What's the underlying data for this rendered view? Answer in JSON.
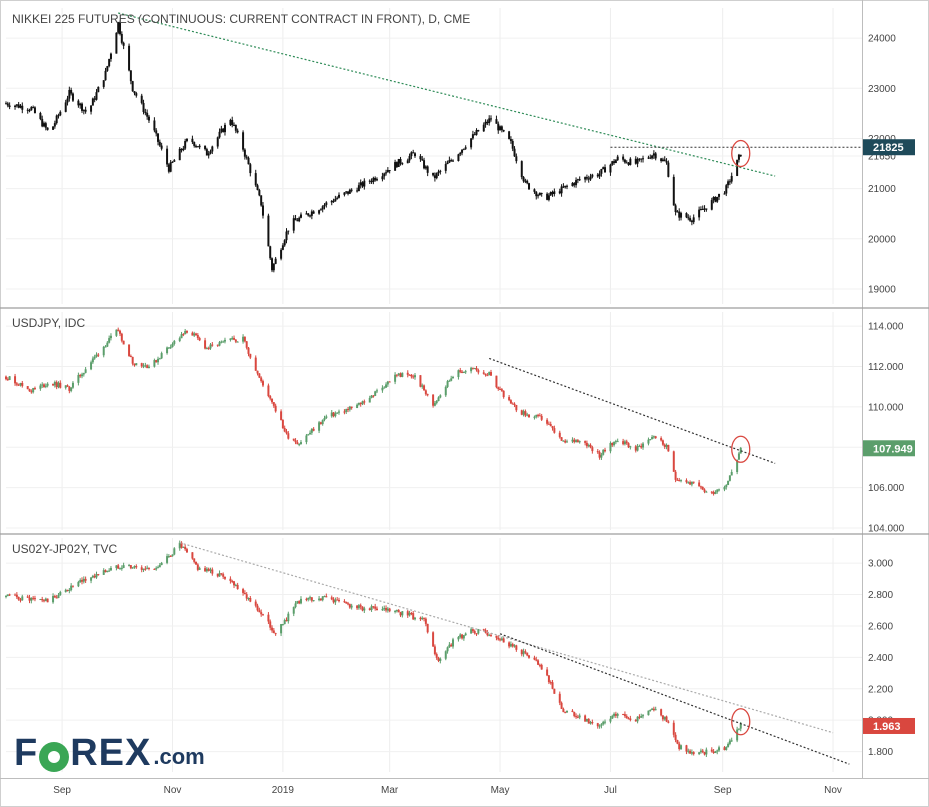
{
  "chart_data": [
    {
      "type": "candlestick",
      "title": "NIKKEI 225 FUTURES (CONTINUOUS: CURRENT CONTRACT IN FRONT), D, CME",
      "yticks": [
        19000,
        20000,
        21000,
        21650,
        22000,
        23000,
        24000
      ],
      "ylim": [
        18700,
        24600
      ],
      "last_value": "21825",
      "last_value_color": "#1e4a5a",
      "dotted_level": 21825,
      "trendline": {
        "color": "#2e8b57",
        "from": [
          "2018-10-02",
          24500
        ],
        "to": [
          "2019-09-30",
          21250
        ]
      },
      "highlight_circle": [
        "2019-09-11",
        21700
      ],
      "series": {
        "dates": [
          "2018-08-01",
          "2018-08-15",
          "2018-08-25",
          "2018-09-05",
          "2018-09-15",
          "2018-09-25",
          "2018-10-02",
          "2018-10-10",
          "2018-10-20",
          "2018-10-30",
          "2018-11-10",
          "2018-11-20",
          "2018-12-03",
          "2018-12-10",
          "2018-12-20",
          "2018-12-26",
          "2019-01-05",
          "2019-01-15",
          "2019-01-30",
          "2019-02-10",
          "2019-02-20",
          "2019-03-05",
          "2019-03-15",
          "2019-03-25",
          "2019-04-05",
          "2019-04-15",
          "2019-04-26",
          "2019-05-07",
          "2019-05-15",
          "2019-05-25",
          "2019-06-05",
          "2019-06-15",
          "2019-06-25",
          "2019-07-05",
          "2019-07-15",
          "2019-07-25",
          "2019-08-01",
          "2019-08-06",
          "2019-08-15",
          "2019-08-25",
          "2019-09-03",
          "2019-09-11"
        ],
        "values": [
          22700,
          22600,
          22100,
          22900,
          22500,
          23300,
          24300,
          23000,
          22300,
          21400,
          22000,
          21700,
          22400,
          21800,
          20700,
          19400,
          20300,
          20500,
          20800,
          21000,
          21200,
          21500,
          21700,
          21200,
          21600,
          22000,
          22400,
          21900,
          21100,
          20800,
          21000,
          21200,
          21300,
          21600,
          21500,
          21700,
          21500,
          20500,
          20400,
          20700,
          21000,
          21700
        ]
      }
    },
    {
      "type": "candlestick",
      "title": "USDJPY, IDC",
      "yticks": [
        104.0,
        106.0,
        108.0,
        110.0,
        112.0,
        114.0
      ],
      "ylim": [
        103.9,
        114.7
      ],
      "last_value": "107.949",
      "last_value_color": "#5b9e6b",
      "trendline": {
        "color": "#333333",
        "from": [
          "2019-04-25",
          112.4
        ],
        "to": [
          "2019-09-30",
          107.2
        ]
      },
      "highlight_circle": [
        "2019-09-11",
        107.9
      ],
      "series": {
        "dates": [
          "2018-08-01",
          "2018-08-15",
          "2018-08-25",
          "2018-09-05",
          "2018-09-15",
          "2018-09-25",
          "2018-10-02",
          "2018-10-10",
          "2018-10-20",
          "2018-10-30",
          "2018-11-10",
          "2018-11-20",
          "2018-12-03",
          "2018-12-10",
          "2018-12-20",
          "2018-12-26",
          "2019-01-03",
          "2019-01-10",
          "2019-01-25",
          "2019-02-10",
          "2019-02-20",
          "2019-03-05",
          "2019-03-15",
          "2019-03-25",
          "2019-04-05",
          "2019-04-15",
          "2019-04-25",
          "2019-05-07",
          "2019-05-15",
          "2019-05-25",
          "2019-06-05",
          "2019-06-15",
          "2019-06-25",
          "2019-07-05",
          "2019-07-15",
          "2019-07-25",
          "2019-08-01",
          "2019-08-06",
          "2019-08-15",
          "2019-08-25",
          "2019-09-03",
          "2019-09-11"
        ],
        "values": [
          111.5,
          110.8,
          111.2,
          110.9,
          112.0,
          113.1,
          113.8,
          112.2,
          112.0,
          113.0,
          113.8,
          112.9,
          113.3,
          113.4,
          111.2,
          110.3,
          108.6,
          108.2,
          109.5,
          110.0,
          110.6,
          111.6,
          111.5,
          110.1,
          111.6,
          111.9,
          111.6,
          110.1,
          109.6,
          109.4,
          108.2,
          108.4,
          107.6,
          108.4,
          107.9,
          108.6,
          108.0,
          106.5,
          106.2,
          105.7,
          106.2,
          107.9
        ]
      }
    },
    {
      "type": "candlestick",
      "title": "US02Y-JP02Y, TVC",
      "yticks": [
        1.8,
        2.0,
        2.2,
        2.4,
        2.6,
        2.8,
        3.0
      ],
      "ylim": [
        1.67,
        3.16
      ],
      "last_value": "1.963",
      "last_value_color": "#d9473f",
      "trendlines": [
        {
          "color": "#aaaaaa",
          "from": [
            "2018-11-05",
            3.13
          ],
          "to": [
            "2019-11-01",
            1.92
          ]
        },
        {
          "color": "#333333",
          "from": [
            "2019-05-01",
            2.55
          ],
          "to": [
            "2019-11-10",
            1.72
          ]
        }
      ],
      "highlight_circle": [
        "2019-09-11",
        1.99
      ],
      "series": {
        "dates": [
          "2018-08-01",
          "2018-08-15",
          "2018-08-25",
          "2018-09-05",
          "2018-09-15",
          "2018-09-25",
          "2018-10-05",
          "2018-10-15",
          "2018-10-25",
          "2018-11-05",
          "2018-11-15",
          "2018-12-01",
          "2018-12-10",
          "2018-12-20",
          "2018-12-28",
          "2019-01-10",
          "2019-01-25",
          "2019-02-10",
          "2019-02-25",
          "2019-03-10",
          "2019-03-20",
          "2019-03-28",
          "2019-04-05",
          "2019-04-15",
          "2019-04-26",
          "2019-05-07",
          "2019-05-20",
          "2019-05-28",
          "2019-06-05",
          "2019-06-15",
          "2019-06-25",
          "2019-07-05",
          "2019-07-15",
          "2019-07-25",
          "2019-08-01",
          "2019-08-08",
          "2019-08-15",
          "2019-08-25",
          "2019-09-03",
          "2019-09-11"
        ],
        "values": [
          2.79,
          2.77,
          2.76,
          2.84,
          2.9,
          2.95,
          2.99,
          2.96,
          2.98,
          3.12,
          2.97,
          2.91,
          2.82,
          2.68,
          2.55,
          2.76,
          2.78,
          2.72,
          2.7,
          2.68,
          2.63,
          2.36,
          2.5,
          2.57,
          2.55,
          2.48,
          2.38,
          2.26,
          2.06,
          2.01,
          1.96,
          2.04,
          2.01,
          2.08,
          2.0,
          1.83,
          1.79,
          1.8,
          1.83,
          1.98
        ]
      }
    }
  ],
  "x_axis": {
    "labels": [
      {
        "date": "2018-09-01",
        "text": "Sep"
      },
      {
        "date": "2018-11-01",
        "text": "Nov"
      },
      {
        "date": "2019-01-01",
        "text": "2019"
      },
      {
        "date": "2019-03-01",
        "text": "Mar"
      },
      {
        "date": "2019-05-01",
        "text": "May"
      },
      {
        "date": "2019-07-01",
        "text": "Jul"
      },
      {
        "date": "2019-09-01",
        "text": "Sep"
      },
      {
        "date": "2019-11-01",
        "text": "Nov"
      }
    ],
    "range": [
      "2018-08-01",
      "2019-11-17"
    ]
  },
  "logo": {
    "before": "F",
    "after": "REX",
    "domain": ".com"
  }
}
